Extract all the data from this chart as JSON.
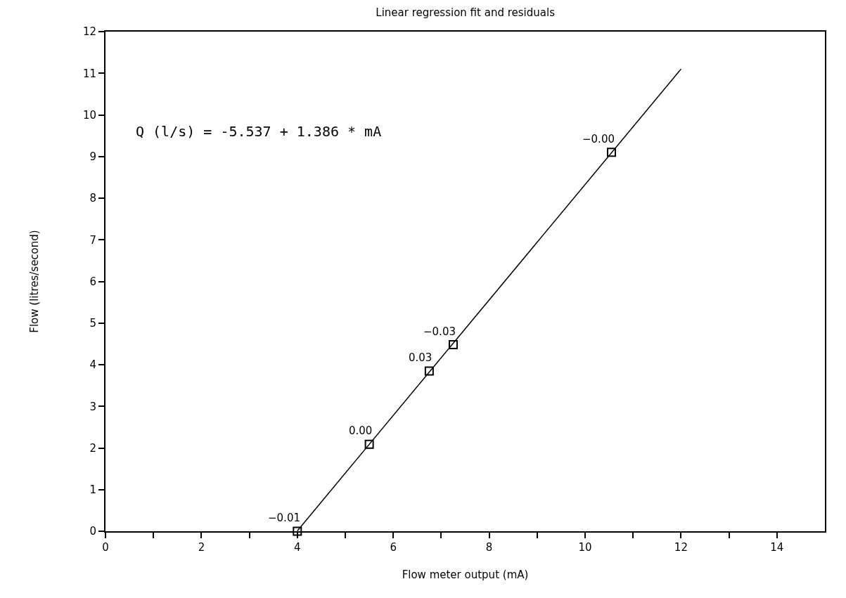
{
  "chart_data": {
    "type": "scatter",
    "title": "Linear regression fit and residuals",
    "xlabel": "Flow meter output (mA)",
    "ylabel": "Flow (litres/second)",
    "annotations": [
      "Q (l/s) = -5.537 + 1.386 * mA",
      {
        "text": "−0.01",
        "x": 4.0,
        "y": 0.0
      },
      {
        "text": "0.00",
        "x": 5.5,
        "y": 2.09
      },
      {
        "text": "0.03",
        "x": 6.75,
        "y": 3.85
      },
      {
        "text": "−0.03",
        "x": 7.25,
        "y": 4.48
      },
      {
        "text": "−0.00",
        "x": 10.55,
        "y": 9.1
      }
    ],
    "x": [
      4.0,
      5.5,
      6.75,
      7.25,
      10.55
    ],
    "series": [
      {
        "color": "#000000",
        "values": [
          0.0,
          2.09,
          3.85,
          4.48,
          9.1
        ],
        "marker": "square"
      },
      {
        "type": "line",
        "color": "#000000",
        "x": [
          4.0,
          12.0
        ],
        "values": [
          0.01,
          11.1
        ],
        "marker": "none",
        "line_style": "solid"
      }
    ],
    "xlim": [
      0,
      15
    ],
    "xticks": [
      0,
      {
        "value": 1,
        "label": null
      },
      2,
      {
        "value": 3,
        "label": null
      },
      4,
      {
        "value": 5,
        "label": null
      },
      6,
      {
        "value": 7,
        "label": null
      },
      8,
      {
        "value": 9,
        "label": null
      },
      10,
      {
        "value": 11,
        "label": null
      },
      12,
      {
        "value": 13,
        "label": null
      },
      14
    ],
    "ylim": [
      0,
      12
    ],
    "yticks": [
      0,
      1,
      2,
      3,
      4,
      5,
      6,
      7,
      8,
      9,
      10,
      11,
      12
    ]
  }
}
